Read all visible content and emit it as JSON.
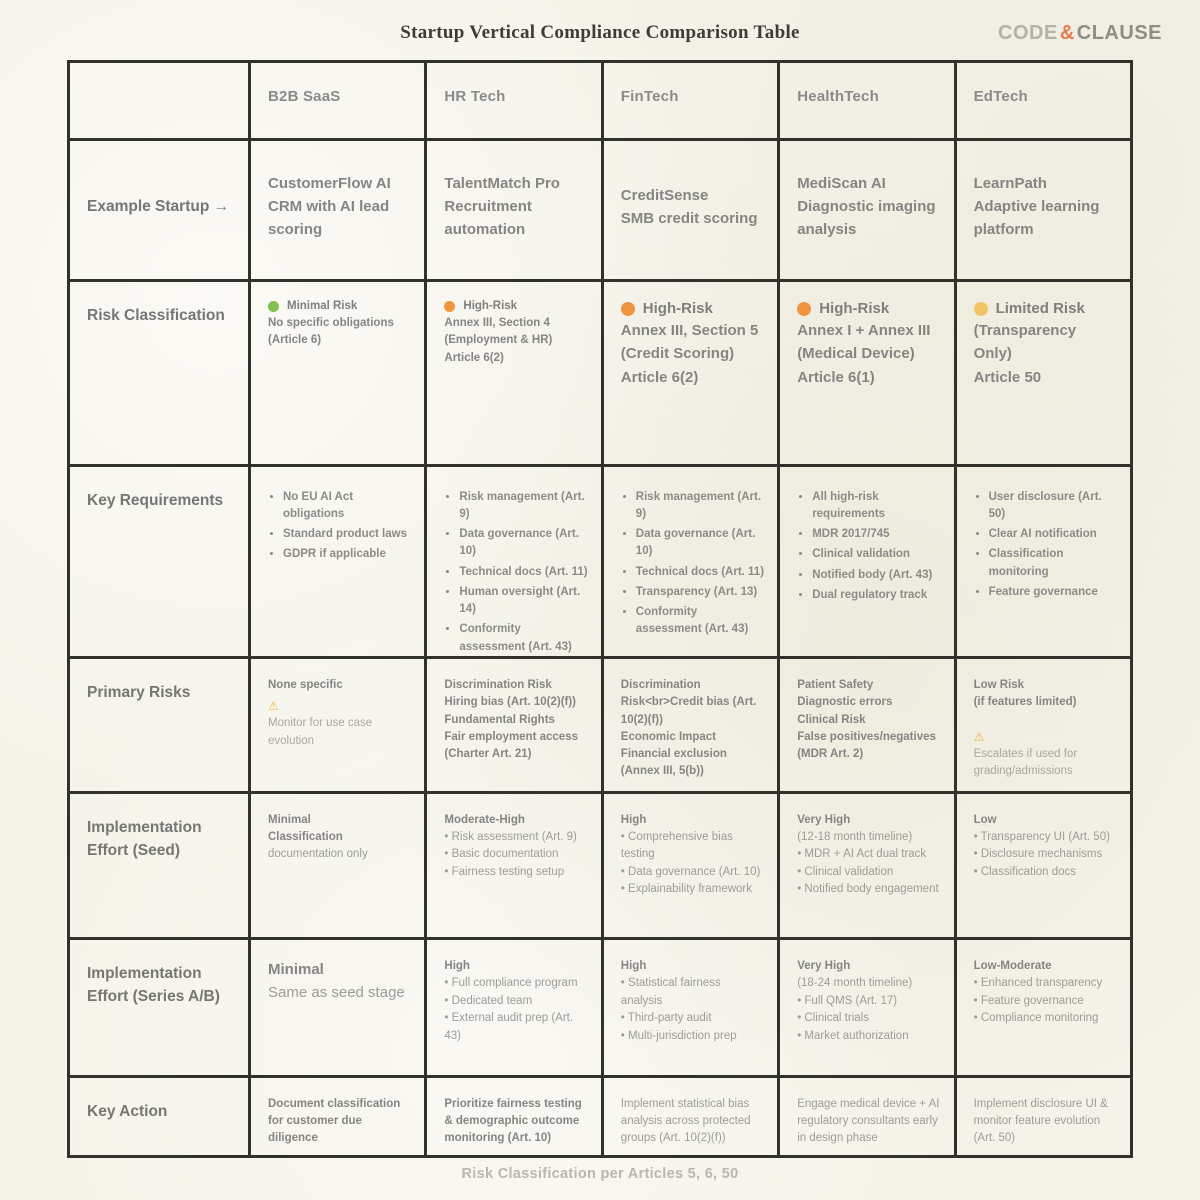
{
  "page": {
    "title": "Startup Vertical Compliance Comparison Table",
    "footer": "Risk Classification per Articles 5, 6, 50",
    "logo": {
      "part1": "CODE",
      "amp": "&",
      "part2": "CLAUSE"
    }
  },
  "icons": {
    "warning": "⚠",
    "risk_dot": "●"
  },
  "colors": {
    "accent_orange": "#e87a50",
    "risk_green": "#84bf51",
    "risk_orange": "#f0953d",
    "risk_amber": "#f4c566",
    "grid_border": "#32322c",
    "paper": "#f5f3e9"
  },
  "table": {
    "column_headers": [
      "",
      "B2B SaaS",
      "HR Tech",
      "FinTech",
      "HealthTech",
      "EdTech"
    ],
    "rows": [
      {
        "label": "Example Startup →",
        "center": true,
        "cells": [
          {
            "size": "lg",
            "segments": [
              {
                "t": "h",
                "text": "CustomerFlow AI"
              },
              {
                "t": "h",
                "text": "CRM with AI lead scoring"
              }
            ]
          },
          {
            "size": "lg",
            "segments": [
              {
                "t": "h",
                "text": "TalentMatch Pro"
              },
              {
                "t": "h",
                "text": "Recruitment automation"
              }
            ]
          },
          {
            "size": "lg",
            "segments": [
              {
                "t": "h",
                "text": "CreditSense"
              },
              {
                "t": "h",
                "text": "SMB credit scoring"
              }
            ]
          },
          {
            "size": "lg",
            "segments": [
              {
                "t": "h",
                "text": "MediScan AI"
              },
              {
                "t": "h",
                "text": "Diagnostic imaging analysis"
              }
            ]
          },
          {
            "size": "lg",
            "segments": [
              {
                "t": "h",
                "text": "LearnPath"
              },
              {
                "t": "h",
                "text": "Adaptive learning platform"
              }
            ]
          }
        ]
      },
      {
        "label": "Risk Classification",
        "cells": [
          {
            "size": "sm",
            "segments": [
              {
                "t": "risk",
                "color": "green",
                "text": "Minimal Risk"
              },
              {
                "t": "h",
                "text": "No specific obligations"
              },
              {
                "t": "h",
                "text": "(Article 6)"
              }
            ]
          },
          {
            "size": "sm",
            "segments": [
              {
                "t": "risk",
                "color": "orange",
                "text": "High-Risk"
              },
              {
                "t": "h",
                "text": "Annex III, Section 4"
              },
              {
                "t": "h",
                "text": "(Employment & HR)"
              },
              {
                "t": "h",
                "text": "Article 6(2)"
              }
            ]
          },
          {
            "size": "lg",
            "segments": [
              {
                "t": "risk",
                "color": "orange",
                "text": "High-Risk"
              },
              {
                "t": "h",
                "text": "Annex III, Section 5"
              },
              {
                "t": "h",
                "text": "(Credit Scoring)"
              },
              {
                "t": "h",
                "text": "Article 6(2)"
              }
            ]
          },
          {
            "size": "lg",
            "segments": [
              {
                "t": "risk",
                "color": "orange",
                "text": "High-Risk"
              },
              {
                "t": "h",
                "text": "Annex I + Annex III"
              },
              {
                "t": "h",
                "text": "(Medical Device)"
              },
              {
                "t": "h",
                "text": "Article 6(1)"
              }
            ]
          },
          {
            "size": "lg",
            "segments": [
              {
                "t": "risk",
                "color": "amber",
                "text": "Limited Risk"
              },
              {
                "t": "h",
                "text": "(Transparency Only)"
              },
              {
                "t": "h",
                "text": "Article 50"
              }
            ]
          }
        ]
      },
      {
        "label": "Key Requirements",
        "cells": [
          {
            "size": "sm",
            "segments": [
              {
                "t": "bullet",
                "text": "No EU AI Act obligations"
              },
              {
                "t": "bullet",
                "text": "Standard product laws"
              },
              {
                "t": "bullet",
                "text": "GDPR if applicable"
              }
            ]
          },
          {
            "size": "sm",
            "segments": [
              {
                "t": "bullet",
                "text": "Risk management (Art. 9)"
              },
              {
                "t": "bullet",
                "text": "Data governance (Art. 10)"
              },
              {
                "t": "bullet",
                "text": "Technical docs (Art. 11)"
              },
              {
                "t": "bullet",
                "text": "Human oversight (Art. 14)"
              },
              {
                "t": "bullet",
                "text": "Conformity assessment (Art. 43)"
              }
            ]
          },
          {
            "size": "sm",
            "segments": [
              {
                "t": "bullet",
                "text": "Risk management (Art. 9)"
              },
              {
                "t": "bullet",
                "text": "Data governance (Art. 10)"
              },
              {
                "t": "bullet",
                "text": "Technical docs (Art. 11)"
              },
              {
                "t": "bullet",
                "text": "Transparency (Art. 13)"
              },
              {
                "t": "bullet",
                "text": "Conformity assessment (Art. 43)"
              }
            ]
          },
          {
            "size": "sm",
            "segments": [
              {
                "t": "bullet",
                "text": "All high-risk requirements"
              },
              {
                "t": "bullet",
                "text": "MDR 2017/745"
              },
              {
                "t": "bullet",
                "text": "Clinical validation"
              },
              {
                "t": "bullet",
                "text": "Notified body (Art. 43)"
              },
              {
                "t": "bullet",
                "text": "Dual regulatory track"
              }
            ]
          },
          {
            "size": "sm",
            "segments": [
              {
                "t": "bullet",
                "text": "User disclosure (Art. 50)"
              },
              {
                "t": "bullet",
                "text": "Clear AI notification"
              },
              {
                "t": "bullet",
                "text": "Classification monitoring"
              },
              {
                "t": "bullet",
                "text": "Feature governance"
              }
            ]
          }
        ]
      },
      {
        "label": "Primary Risks",
        "cells": [
          {
            "size": "sm",
            "segments": [
              {
                "t": "h",
                "text": "None specific"
              },
              {
                "t": "warn",
                "text": "Monitor for use case evolution"
              }
            ]
          },
          {
            "size": "sm",
            "segments": [
              {
                "t": "h",
                "text": "Discrimination Risk"
              },
              {
                "t": "h",
                "text": "Hiring bias (Art. 10(2)(f))"
              },
              {
                "t": "h",
                "text": "Fundamental Rights"
              },
              {
                "t": "h",
                "text": "Fair employment access (Charter Art. 21)"
              }
            ]
          },
          {
            "size": "sm",
            "segments": [
              {
                "t": "h",
                "text": "Discrimination Risk<br>Credit bias (Art. 10(2)(f))"
              },
              {
                "t": "h",
                "text": "Economic Impact"
              },
              {
                "t": "h",
                "text": "Financial exclusion (Annex III, 5(b))"
              }
            ]
          },
          {
            "size": "sm",
            "segments": [
              {
                "t": "h",
                "text": "Patient Safety"
              },
              {
                "t": "h",
                "text": "Diagnostic errors"
              },
              {
                "t": "h",
                "text": "Clinical Risk"
              },
              {
                "t": "h",
                "text": "False positives/negatives (MDR Art. 2)"
              }
            ]
          },
          {
            "size": "sm",
            "segments": [
              {
                "t": "h",
                "text": "Low Risk"
              },
              {
                "t": "h",
                "text": "(if features limited)"
              },
              {
                "t": "gap"
              },
              {
                "t": "warn",
                "text": "Escalates if used for grading/admissions"
              }
            ]
          }
        ]
      },
      {
        "label": "Implementation Effort (Seed)",
        "cells": [
          {
            "size": "sm",
            "segments": [
              {
                "t": "h",
                "text": "Minimal"
              },
              {
                "t": "h",
                "text": "Classification"
              },
              {
                "t": "p",
                "text": "documentation only"
              }
            ]
          },
          {
            "size": "sm",
            "segments": [
              {
                "t": "h",
                "text": "Moderate-High"
              },
              {
                "t": "p",
                "text": "• Risk assessment (Art. 9)"
              },
              {
                "t": "p",
                "text": "• Basic documentation"
              },
              {
                "t": "p",
                "text": "• Fairness testing setup"
              }
            ]
          },
          {
            "size": "sm",
            "segments": [
              {
                "t": "h",
                "text": "High"
              },
              {
                "t": "p",
                "text": "• Comprehensive bias testing"
              },
              {
                "t": "p",
                "text": "• Data governance (Art. 10)"
              },
              {
                "t": "p",
                "text": "• Explainability framework"
              }
            ]
          },
          {
            "size": "sm",
            "segments": [
              {
                "t": "h",
                "text": "Very High"
              },
              {
                "t": "p",
                "text": "(12-18 month timeline)"
              },
              {
                "t": "p",
                "text": "• MDR + AI Act dual track"
              },
              {
                "t": "p",
                "text": "• Clinical validation"
              },
              {
                "t": "p",
                "text": "• Notified body engagement"
              }
            ]
          },
          {
            "size": "sm",
            "segments": [
              {
                "t": "h",
                "text": "Low"
              },
              {
                "t": "p",
                "text": "• Transparency UI (Art. 50)"
              },
              {
                "t": "p",
                "text": "• Disclosure mechanisms"
              },
              {
                "t": "p",
                "text": "• Classification docs"
              }
            ]
          }
        ]
      },
      {
        "label": "Implementation Effort (Series A/B)",
        "cells": [
          {
            "size": "lg",
            "segments": [
              {
                "t": "h",
                "text": "Minimal"
              },
              {
                "t": "p",
                "text": "Same as seed stage"
              }
            ]
          },
          {
            "size": "sm",
            "segments": [
              {
                "t": "h",
                "text": "High"
              },
              {
                "t": "p",
                "text": "• Full compliance program"
              },
              {
                "t": "p",
                "text": "• Dedicated team"
              },
              {
                "t": "p",
                "text": "• External audit prep (Art. 43)"
              }
            ]
          },
          {
            "size": "sm",
            "segments": [
              {
                "t": "h",
                "text": "High"
              },
              {
                "t": "p",
                "text": "• Statistical fairness analysis"
              },
              {
                "t": "p",
                "text": "• Third-party audit"
              },
              {
                "t": "p",
                "text": "• Multi-jurisdiction prep"
              }
            ]
          },
          {
            "size": "sm",
            "segments": [
              {
                "t": "h",
                "text": "Very High"
              },
              {
                "t": "p",
                "text": "(18-24 month timeline)"
              },
              {
                "t": "p",
                "text": "• Full QMS (Art. 17)"
              },
              {
                "t": "p",
                "text": "• Clinical trials"
              },
              {
                "t": "p",
                "text": "• Market authorization"
              }
            ]
          },
          {
            "size": "sm",
            "segments": [
              {
                "t": "h",
                "text": "Low-Moderate"
              },
              {
                "t": "p",
                "text": "• Enhanced transparency"
              },
              {
                "t": "p",
                "text": "• Feature governance"
              },
              {
                "t": "p",
                "text": "• Compliance monitoring"
              }
            ]
          }
        ]
      },
      {
        "label": "Key Action",
        "cells": [
          {
            "size": "sm",
            "segments": [
              {
                "t": "h",
                "text": "Document classification for customer due diligence"
              }
            ]
          },
          {
            "size": "sm",
            "segments": [
              {
                "t": "h",
                "text": "Prioritize fairness testing & demographic outcome monitoring (Art. 10)"
              }
            ]
          },
          {
            "size": "sm",
            "segments": [
              {
                "t": "p",
                "text": "Implement statistical bias analysis across protected groups (Art. 10(2)(f))"
              }
            ]
          },
          {
            "size": "sm",
            "segments": [
              {
                "t": "p",
                "text": "Engage medical device + AI regulatory consultants early in design phase"
              }
            ]
          },
          {
            "size": "sm",
            "segments": [
              {
                "t": "p",
                "text": "Implement disclosure UI & monitor feature evolution (Art. 50)"
              }
            ]
          }
        ]
      }
    ]
  }
}
